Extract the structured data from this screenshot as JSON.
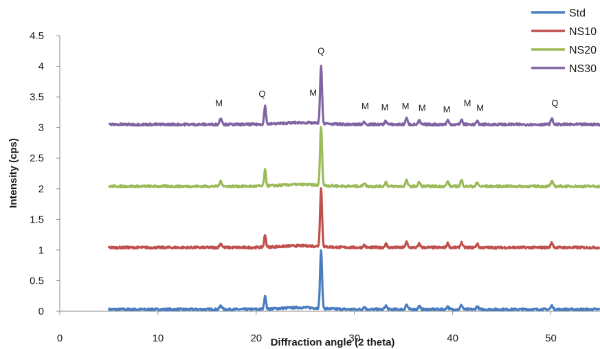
{
  "chart_data": {
    "type": "line",
    "xlabel": "Diffraction angle (2 theta)",
    "ylabel": "Intensity (cps)",
    "xlim": [
      0,
      55
    ],
    "ylim": [
      0,
      4.5
    ],
    "xticks": [
      "0",
      "10",
      "20",
      "30",
      "40",
      "50"
    ],
    "yticks": [
      "0",
      "0.5",
      "1",
      "1.5",
      "2",
      "2.5",
      "3",
      "3.5",
      "4",
      "4.5"
    ],
    "grid": false,
    "legend_position": "top-right",
    "peak_positions": [
      16.4,
      20.9,
      26.6,
      31.0,
      33.2,
      35.3,
      36.6,
      39.5,
      40.9,
      42.5,
      50.1
    ],
    "series": [
      {
        "name": "Std",
        "color": "#4a7dbf",
        "baseline": 0.03,
        "peak_heights": [
          0.06,
          0.22,
          0.95,
          0.04,
          0.06,
          0.08,
          0.05,
          0.05,
          0.07,
          0.05,
          0.06
        ]
      },
      {
        "name": "NS10",
        "color": "#c0504d",
        "baseline": 1.04,
        "peak_heights": [
          0.06,
          0.2,
          0.95,
          0.04,
          0.06,
          0.09,
          0.06,
          0.07,
          0.08,
          0.06,
          0.08
        ]
      },
      {
        "name": "NS20",
        "color": "#9bbb59",
        "baseline": 2.04,
        "peak_heights": [
          0.08,
          0.26,
          0.96,
          0.06,
          0.07,
          0.1,
          0.07,
          0.08,
          0.1,
          0.06,
          0.08
        ]
      },
      {
        "name": "NS30",
        "color": "#8064a2",
        "baseline": 3.05,
        "peak_heights": [
          0.1,
          0.3,
          0.93,
          0.04,
          0.06,
          0.1,
          0.06,
          0.07,
          0.08,
          0.05,
          0.09
        ]
      }
    ],
    "annotations": [
      {
        "text": "M",
        "x": 16.2,
        "y": 3.35
      },
      {
        "text": "Q",
        "x": 20.6,
        "y": 3.5
      },
      {
        "text": "M",
        "x": 25.8,
        "y": 3.52
      },
      {
        "text": "Q",
        "x": 26.6,
        "y": 4.2
      },
      {
        "text": "M",
        "x": 31.1,
        "y": 3.3
      },
      {
        "text": "M",
        "x": 33.1,
        "y": 3.28
      },
      {
        "text": "M",
        "x": 35.2,
        "y": 3.3
      },
      {
        "text": "M",
        "x": 36.9,
        "y": 3.27
      },
      {
        "text": "M",
        "x": 39.4,
        "y": 3.25
      },
      {
        "text": "M",
        "x": 41.5,
        "y": 3.35
      },
      {
        "text": "M",
        "x": 42.8,
        "y": 3.27
      },
      {
        "text": "Q",
        "x": 50.4,
        "y": 3.35
      }
    ]
  }
}
